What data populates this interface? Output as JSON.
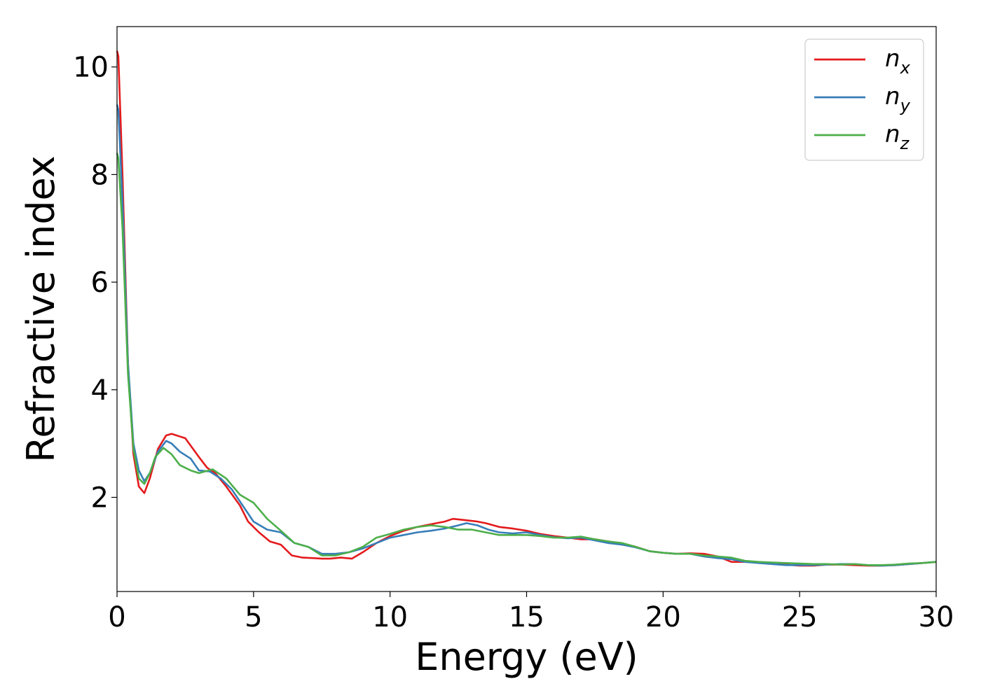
{
  "chart_data": {
    "type": "line",
    "title": "",
    "xlabel": "Energy (eV)",
    "ylabel": "Refractive index",
    "xlim": [
      0,
      30
    ],
    "ylim": [
      0.25,
      10.75
    ],
    "xticks": [
      0,
      5,
      10,
      15,
      20,
      25,
      30
    ],
    "yticks": [
      2,
      4,
      6,
      8,
      10
    ],
    "grid": false,
    "legend_position": "top-right",
    "series": [
      {
        "name": "n_x",
        "label_base": "n",
        "label_sub": "x",
        "color": "#e41a1c",
        "points": [
          [
            0,
            10.3
          ],
          [
            0.05,
            10.2
          ],
          [
            0.2,
            8.0
          ],
          [
            0.4,
            4.5
          ],
          [
            0.6,
            2.8
          ],
          [
            0.8,
            2.2
          ],
          [
            1.0,
            2.08
          ],
          [
            1.2,
            2.35
          ],
          [
            1.5,
            2.9
          ],
          [
            1.8,
            3.15
          ],
          [
            2.0,
            3.18
          ],
          [
            2.5,
            3.1
          ],
          [
            3.0,
            2.75
          ],
          [
            3.3,
            2.55
          ],
          [
            3.6,
            2.45
          ],
          [
            4.0,
            2.2
          ],
          [
            4.5,
            1.85
          ],
          [
            4.8,
            1.55
          ],
          [
            5.2,
            1.35
          ],
          [
            5.6,
            1.18
          ],
          [
            6.0,
            1.12
          ],
          [
            6.4,
            0.92
          ],
          [
            6.8,
            0.88
          ],
          [
            7.2,
            0.87
          ],
          [
            7.5,
            0.86
          ],
          [
            7.8,
            0.86
          ],
          [
            8.2,
            0.88
          ],
          [
            8.6,
            0.86
          ],
          [
            9.0,
            0.98
          ],
          [
            9.5,
            1.15
          ],
          [
            10.0,
            1.28
          ],
          [
            10.5,
            1.38
          ],
          [
            11.0,
            1.45
          ],
          [
            11.5,
            1.5
          ],
          [
            12.0,
            1.55
          ],
          [
            12.3,
            1.6
          ],
          [
            12.7,
            1.58
          ],
          [
            13.2,
            1.55
          ],
          [
            13.5,
            1.52
          ],
          [
            14.0,
            1.45
          ],
          [
            14.5,
            1.42
          ],
          [
            15.0,
            1.38
          ],
          [
            15.5,
            1.32
          ],
          [
            16.0,
            1.28
          ],
          [
            16.5,
            1.25
          ],
          [
            17.0,
            1.22
          ],
          [
            17.5,
            1.22
          ],
          [
            18.0,
            1.18
          ],
          [
            18.5,
            1.14
          ],
          [
            19.0,
            1.08
          ],
          [
            19.5,
            1.0
          ],
          [
            20.0,
            0.97
          ],
          [
            20.5,
            0.95
          ],
          [
            21.0,
            0.96
          ],
          [
            21.5,
            0.95
          ],
          [
            22.0,
            0.9
          ],
          [
            22.5,
            0.8
          ],
          [
            23.0,
            0.8
          ],
          [
            23.5,
            0.79
          ],
          [
            24.0,
            0.77
          ],
          [
            24.5,
            0.75
          ],
          [
            25.0,
            0.73
          ],
          [
            25.5,
            0.73
          ],
          [
            26.0,
            0.75
          ],
          [
            26.5,
            0.75
          ],
          [
            27.0,
            0.74
          ],
          [
            27.5,
            0.73
          ],
          [
            28.0,
            0.73
          ],
          [
            28.5,
            0.74
          ],
          [
            29.0,
            0.76
          ],
          [
            29.5,
            0.78
          ],
          [
            30.0,
            0.8
          ]
        ]
      },
      {
        "name": "n_y",
        "label_base": "n",
        "label_sub": "y",
        "color": "#377eb8",
        "points": [
          [
            0,
            9.3
          ],
          [
            0.05,
            9.2
          ],
          [
            0.2,
            7.5
          ],
          [
            0.4,
            4.5
          ],
          [
            0.6,
            3.0
          ],
          [
            0.8,
            2.5
          ],
          [
            1.0,
            2.3
          ],
          [
            1.2,
            2.45
          ],
          [
            1.5,
            2.85
          ],
          [
            1.8,
            3.05
          ],
          [
            2.0,
            3.0
          ],
          [
            2.3,
            2.85
          ],
          [
            2.7,
            2.72
          ],
          [
            3.0,
            2.5
          ],
          [
            3.4,
            2.48
          ],
          [
            3.8,
            2.35
          ],
          [
            4.2,
            2.15
          ],
          [
            4.6,
            1.85
          ],
          [
            5.0,
            1.55
          ],
          [
            5.5,
            1.4
          ],
          [
            6.0,
            1.35
          ],
          [
            6.5,
            1.15
          ],
          [
            7.0,
            1.08
          ],
          [
            7.5,
            0.95
          ],
          [
            8.0,
            0.95
          ],
          [
            8.5,
            0.98
          ],
          [
            9.0,
            1.05
          ],
          [
            9.5,
            1.15
          ],
          [
            10.0,
            1.25
          ],
          [
            10.5,
            1.3
          ],
          [
            11.0,
            1.35
          ],
          [
            11.5,
            1.38
          ],
          [
            12.0,
            1.42
          ],
          [
            12.5,
            1.48
          ],
          [
            12.8,
            1.52
          ],
          [
            13.2,
            1.48
          ],
          [
            13.6,
            1.4
          ],
          [
            14.0,
            1.35
          ],
          [
            14.5,
            1.33
          ],
          [
            15.0,
            1.35
          ],
          [
            15.5,
            1.3
          ],
          [
            16.0,
            1.26
          ],
          [
            16.5,
            1.24
          ],
          [
            17.0,
            1.25
          ],
          [
            17.5,
            1.2
          ],
          [
            18.0,
            1.15
          ],
          [
            18.5,
            1.12
          ],
          [
            19.0,
            1.07
          ],
          [
            19.5,
            1.0
          ],
          [
            20.0,
            0.97
          ],
          [
            20.5,
            0.95
          ],
          [
            21.0,
            0.95
          ],
          [
            21.5,
            0.9
          ],
          [
            22.0,
            0.87
          ],
          [
            22.5,
            0.85
          ],
          [
            23.0,
            0.8
          ],
          [
            23.5,
            0.78
          ],
          [
            24.0,
            0.76
          ],
          [
            24.5,
            0.74
          ],
          [
            25.0,
            0.74
          ],
          [
            25.5,
            0.74
          ],
          [
            26.0,
            0.75
          ],
          [
            26.5,
            0.76
          ],
          [
            27.0,
            0.76
          ],
          [
            27.5,
            0.74
          ],
          [
            28.0,
            0.73
          ],
          [
            28.5,
            0.74
          ],
          [
            29.0,
            0.76
          ],
          [
            29.5,
            0.78
          ],
          [
            30.0,
            0.8
          ]
        ]
      },
      {
        "name": "n_z",
        "label_base": "n",
        "label_sub": "z",
        "color": "#4daf4a",
        "points": [
          [
            0,
            8.4
          ],
          [
            0.05,
            8.3
          ],
          [
            0.2,
            7.0
          ],
          [
            0.4,
            4.3
          ],
          [
            0.6,
            2.9
          ],
          [
            0.8,
            2.35
          ],
          [
            1.0,
            2.25
          ],
          [
            1.2,
            2.45
          ],
          [
            1.4,
            2.75
          ],
          [
            1.7,
            2.92
          ],
          [
            2.0,
            2.8
          ],
          [
            2.3,
            2.6
          ],
          [
            2.7,
            2.5
          ],
          [
            3.0,
            2.45
          ],
          [
            3.5,
            2.52
          ],
          [
            4.0,
            2.35
          ],
          [
            4.5,
            2.05
          ],
          [
            5.0,
            1.9
          ],
          [
            5.5,
            1.6
          ],
          [
            6.0,
            1.38
          ],
          [
            6.5,
            1.15
          ],
          [
            7.0,
            1.08
          ],
          [
            7.5,
            0.92
          ],
          [
            8.0,
            0.92
          ],
          [
            8.5,
            0.98
          ],
          [
            9.0,
            1.08
          ],
          [
            9.5,
            1.25
          ],
          [
            10.0,
            1.32
          ],
          [
            10.5,
            1.4
          ],
          [
            11.0,
            1.45
          ],
          [
            11.5,
            1.48
          ],
          [
            12.0,
            1.45
          ],
          [
            12.5,
            1.4
          ],
          [
            13.0,
            1.4
          ],
          [
            13.5,
            1.35
          ],
          [
            14.0,
            1.3
          ],
          [
            14.5,
            1.3
          ],
          [
            15.0,
            1.3
          ],
          [
            15.5,
            1.28
          ],
          [
            16.0,
            1.25
          ],
          [
            16.5,
            1.25
          ],
          [
            17.0,
            1.27
          ],
          [
            17.5,
            1.22
          ],
          [
            18.0,
            1.18
          ],
          [
            18.5,
            1.15
          ],
          [
            19.0,
            1.08
          ],
          [
            19.5,
            1.0
          ],
          [
            20.0,
            0.97
          ],
          [
            20.5,
            0.95
          ],
          [
            21.0,
            0.95
          ],
          [
            21.5,
            0.92
          ],
          [
            22.0,
            0.9
          ],
          [
            22.5,
            0.88
          ],
          [
            23.0,
            0.82
          ],
          [
            23.5,
            0.8
          ],
          [
            24.0,
            0.79
          ],
          [
            24.5,
            0.78
          ],
          [
            25.0,
            0.77
          ],
          [
            25.5,
            0.76
          ],
          [
            26.0,
            0.76
          ],
          [
            26.5,
            0.75
          ],
          [
            27.0,
            0.76
          ],
          [
            27.5,
            0.74
          ],
          [
            28.0,
            0.74
          ],
          [
            28.5,
            0.75
          ],
          [
            29.0,
            0.77
          ],
          [
            29.5,
            0.78
          ],
          [
            30.0,
            0.8
          ]
        ]
      }
    ]
  }
}
